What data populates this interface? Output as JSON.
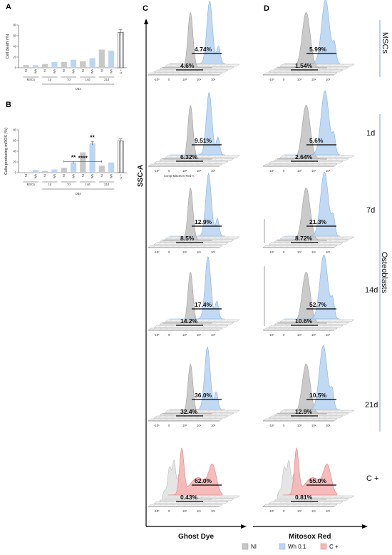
{
  "panels": {
    "A": "A",
    "B": "B",
    "C": "C",
    "D": "D"
  },
  "colors": {
    "ni": "#c8c8c8",
    "wh": "#bcd6f2",
    "wh_stroke": "#7aaee0",
    "ni_stroke": "#8a8a8a",
    "cplus": "#f6b6b6",
    "cplus_stroke": "#e07a7a",
    "row_line": "#7aa6d8"
  },
  "chart_data": [
    {
      "type": "bar",
      "panel": "A",
      "ylabel": "Cell death (%)",
      "ylim": [
        0,
        80
      ],
      "yticks": [
        0,
        20,
        40,
        60,
        80
      ],
      "categories": [
        "NI",
        "Wh",
        "NI",
        "Wh",
        "NI",
        "Wh",
        "NI",
        "Wh",
        "NI",
        "Wh",
        "C +"
      ],
      "groups": [
        "MSCs",
        "1d",
        "7d",
        "14d",
        "21d"
      ],
      "bracket_label": "OBs",
      "values": [
        5,
        5,
        7,
        11,
        11,
        15,
        12,
        18,
        34,
        32,
        66
      ],
      "errors": [
        0,
        0,
        0,
        0,
        0,
        0,
        0,
        0,
        0,
        0,
        5
      ],
      "series_kind": [
        "ni",
        "wh",
        "ni",
        "wh",
        "ni",
        "wh",
        "ni",
        "wh",
        "ni",
        "wh",
        "cplus"
      ]
    },
    {
      "type": "bar",
      "panel": "B",
      "ylabel": "Cells producing mROS (%)",
      "ylim": [
        0,
        80
      ],
      "yticks": [
        0,
        20,
        40,
        60,
        80
      ],
      "categories": [
        "NI",
        "Wh",
        "NI",
        "Wh",
        "NI",
        "Wh",
        "NI",
        "Wh",
        "NI",
        "Wh",
        "C +"
      ],
      "groups": [
        "MSCs",
        "1d",
        "7d",
        "14d",
        "21d"
      ],
      "bracket_label": "OBs",
      "values": [
        1,
        5,
        3,
        6,
        9,
        19,
        38,
        55,
        13,
        19,
        59
      ],
      "errors": [
        0,
        0,
        0,
        0,
        0,
        2,
        0,
        3,
        0,
        0,
        4
      ],
      "series_kind": [
        "ni",
        "wh",
        "ni",
        "wh",
        "ni",
        "wh",
        "ni",
        "wh",
        "ni",
        "wh",
        "cplus"
      ],
      "annotations": [
        {
          "label": "****",
          "from_index": 4,
          "to_index": 8
        },
        {
          "label": "**",
          "index": 5
        },
        {
          "label": "**",
          "index": 7
        }
      ]
    },
    {
      "type": "area",
      "panel": "C",
      "xlabel": "Ghost Dye",
      "ylabel": "SSC-A",
      "xtick_labels": [
        "-10³",
        "0",
        "10³",
        "10⁴",
        "10⁵"
      ],
      "first_xlabel": "Comp-MitoSOX Red-A",
      "rows": [
        {
          "label": "MSCs",
          "upper": "4.74%",
          "lower": "4.6%"
        },
        {
          "label": "1d",
          "upper": "9.51%",
          "lower": "6.32%"
        },
        {
          "label": "7d",
          "upper": "12.9%",
          "lower": "8.5%"
        },
        {
          "label": "14d",
          "upper": "17.4%",
          "lower": "14.2%"
        },
        {
          "label": "21d",
          "upper": "36.0%",
          "lower": "32.4%"
        },
        {
          "label": "C +",
          "upper": "62.0%",
          "lower": "0.43%"
        }
      ]
    },
    {
      "type": "area",
      "panel": "D",
      "xlabel": "Mitosox Red",
      "xtick_labels": [
        "-10³",
        "0",
        "10³",
        "10⁴",
        "10⁵"
      ],
      "rows": [
        {
          "label": "MSCs",
          "upper": "5.99%",
          "lower": "1.54%"
        },
        {
          "label": "1d",
          "upper": "5.6%",
          "lower": "2.64%"
        },
        {
          "label": "7d",
          "upper": "21.3%",
          "lower": "8.72%"
        },
        {
          "label": "14d",
          "upper": "52.7%",
          "lower": "10.6%"
        },
        {
          "label": "21d",
          "upper": "10.5%",
          "lower": "12.9%"
        },
        {
          "label": "C +",
          "upper": "55.0%",
          "lower": "0.81%"
        }
      ]
    }
  ],
  "row_labels": {
    "mscs": "MSCs",
    "d1": "1d",
    "d7": "7d",
    "d14": "14d",
    "d21": "21d",
    "cplus": "C +",
    "osteoblasts": "Osteoblasts"
  },
  "legend": [
    {
      "label": "NI",
      "kind": "ni"
    },
    {
      "label": "Wh 0.1",
      "kind": "wh"
    },
    {
      "label": "C +",
      "kind": "cplus"
    }
  ]
}
